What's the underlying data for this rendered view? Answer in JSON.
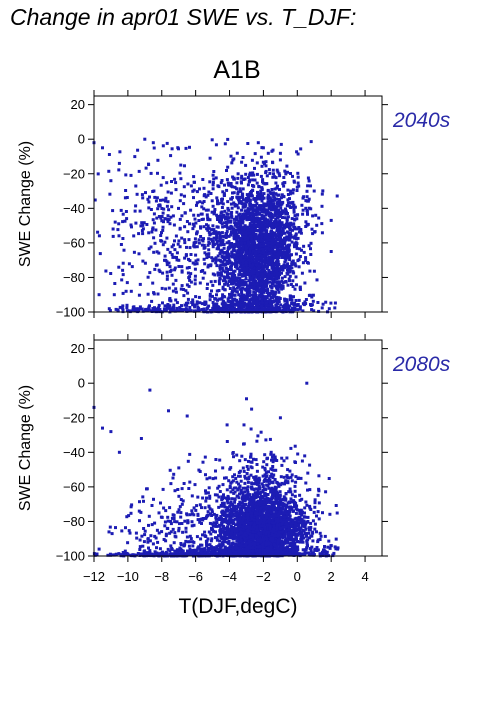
{
  "title": "Change in apr01 SWE vs. T_DJF:",
  "scenario": "A1B",
  "xlabel": "T(DJF,degC)",
  "colors": {
    "points": "#1c1cb4",
    "period_label": "#2a2aa8",
    "axes": "#000000"
  },
  "chart_data": [
    {
      "type": "scatter",
      "period_label": "2040s",
      "ylabel": "SWE Change (%)",
      "xlim": [
        -12,
        5
      ],
      "ylim": [
        -100,
        25
      ],
      "x_ticks": [
        -12,
        -10,
        -8,
        -6,
        -4,
        -2,
        0,
        2,
        4
      ],
      "y_ticks": [
        20,
        0,
        -20,
        -40,
        -60,
        -80,
        -100
      ],
      "y_tick_labels": [
        "20",
        "0",
        "−20",
        "−40",
        "−60",
        "−80",
        "−100"
      ],
      "grid": false,
      "point_clusters": [
        {
          "cx": -2.4,
          "cy": -68,
          "sx": 1.2,
          "sy": 20,
          "n": 2000
        },
        {
          "cx": -2.0,
          "cy": -45,
          "sx": 1.4,
          "sy": 15,
          "n": 550
        },
        {
          "cx": -7.0,
          "cy": -55,
          "sx": 2.2,
          "sy": 22,
          "n": 450
        },
        {
          "cx": -3.0,
          "cy": -97,
          "sx": 2.0,
          "sy": 3,
          "n": 400
        },
        {
          "cx": -8.5,
          "cy": -99,
          "sx": 1.5,
          "sy": 1.5,
          "n": 90
        }
      ],
      "points": [
        [
          -12,
          -2
        ],
        [
          -11.5,
          -5
        ],
        [
          -11,
          -24
        ],
        [
          -10.5,
          -14
        ],
        [
          -9,
          0
        ],
        [
          -8.5,
          -2
        ],
        [
          -10.8,
          -90
        ],
        [
          -9.8,
          -88
        ],
        [
          -2.3,
          -2
        ],
        [
          -2,
          -5
        ],
        [
          -1.5,
          -7
        ],
        [
          -1,
          -12
        ],
        [
          0.5,
          -40
        ],
        [
          1,
          -30
        ],
        [
          2,
          -47
        ],
        [
          2,
          -65
        ],
        [
          -11.7,
          -90
        ]
      ]
    },
    {
      "type": "scatter",
      "period_label": "2080s",
      "ylabel": "SWE Change (%)",
      "xlim": [
        -12,
        5
      ],
      "ylim": [
        -100,
        25
      ],
      "x_ticks": [
        -12,
        -10,
        -8,
        -6,
        -4,
        -2,
        0,
        2,
        4
      ],
      "x_tick_labels": [
        "−12",
        "−10",
        "−8",
        "−6",
        "−4",
        "−2",
        "0",
        "2",
        "4"
      ],
      "y_ticks": [
        20,
        0,
        -20,
        -40,
        -60,
        -80,
        -100
      ],
      "y_tick_labels": [
        "20",
        "0",
        "−20",
        "−40",
        "−60",
        "−80",
        "−100"
      ],
      "grid": false,
      "point_clusters": [
        {
          "cx": -2.0,
          "cy": -84,
          "sx": 1.3,
          "sy": 11,
          "n": 2200
        },
        {
          "cx": -2.5,
          "cy": -60,
          "sx": 1.6,
          "sy": 14,
          "n": 300
        },
        {
          "cx": -6.5,
          "cy": -85,
          "sx": 2.0,
          "sy": 14,
          "n": 300
        },
        {
          "cx": -3.0,
          "cy": -98,
          "sx": 2.5,
          "sy": 2,
          "n": 450
        },
        {
          "cx": -8.0,
          "cy": -100,
          "sx": 1.5,
          "sy": 0.8,
          "n": 120
        }
      ],
      "points": [
        [
          -12,
          -14
        ],
        [
          -11.5,
          -26
        ],
        [
          -11,
          -28
        ],
        [
          -8.7,
          -4
        ],
        [
          -7.6,
          -16
        ],
        [
          -6.5,
          -19
        ],
        [
          -3,
          -9
        ],
        [
          -2.7,
          -15
        ],
        [
          -10.5,
          -40
        ],
        [
          -9.2,
          -32
        ],
        [
          -11.7,
          -96
        ],
        [
          -1,
          -20
        ],
        [
          0.3,
          -45
        ]
      ]
    }
  ]
}
